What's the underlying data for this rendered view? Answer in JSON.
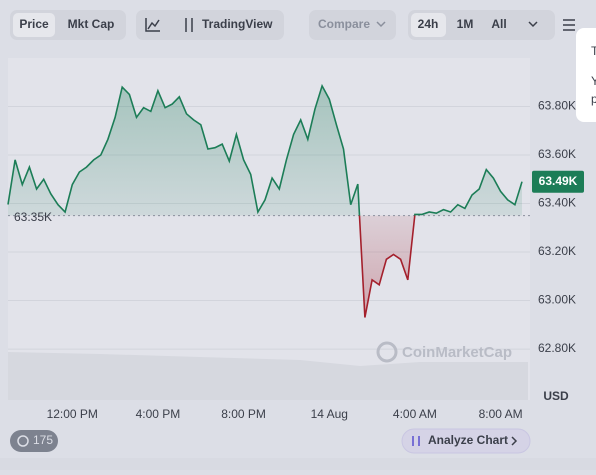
{
  "toolbar": {
    "tabs": [
      "Price",
      "Mkt Cap"
    ],
    "tradingview": "TradingView",
    "compare": "Compare",
    "ranges": [
      "24h",
      "1M",
      "All"
    ]
  },
  "tooltip_lines": [
    "T",
    "Y",
    "p"
  ],
  "chart_data": {
    "type": "line",
    "categories": [
      null,
      null,
      null,
      null,
      null,
      null,
      null,
      null,
      null,
      "12:00 PM",
      null,
      null,
      null,
      null,
      null,
      null,
      null,
      null,
      null,
      null,
      null,
      "4:00 PM",
      null,
      null,
      null,
      null,
      null,
      null,
      null,
      null,
      null,
      null,
      null,
      "8:00 PM",
      null,
      null,
      null,
      null,
      null,
      null,
      null,
      null,
      null,
      null,
      null,
      "14 Aug",
      null,
      null,
      null,
      null,
      null,
      null,
      null,
      null,
      null,
      null,
      null,
      "4:00 AM",
      null,
      null,
      null,
      null,
      null,
      null,
      null,
      null,
      null,
      null,
      null,
      "8:00 AM",
      null,
      null,
      null
    ],
    "values": [
      63396,
      63580,
      63478,
      63550,
      63460,
      63500,
      63440,
      63395,
      63365,
      63478,
      63530,
      63550,
      63580,
      63600,
      63665,
      63755,
      63880,
      63850,
      63755,
      63795,
      63780,
      63865,
      63795,
      63810,
      63840,
      63770,
      63745,
      63725,
      63625,
      63630,
      63645,
      63575,
      63685,
      63580,
      63520,
      63365,
      63415,
      63505,
      63460,
      63580,
      63685,
      63745,
      63665,
      63790,
      63885,
      63830,
      63725,
      63625,
      63395,
      63480,
      62930,
      63085,
      63065,
      63170,
      63190,
      63170,
      63085,
      63355,
      63355,
      63365,
      63360,
      63375,
      63365,
      63395,
      63380,
      63435,
      63460,
      63540,
      63505,
      63450,
      63415,
      63395,
      63490
    ],
    "baseline": {
      "value": 63350,
      "label": "63.35K"
    },
    "current": {
      "value": 63490,
      "label": "63.49K"
    },
    "up_color": "#1c7d57",
    "down_color": "#a4202c",
    "ylim": [
      62590,
      64000
    ],
    "yticks": [
      {
        "value": 62800,
        "label": "62.80K"
      },
      {
        "value": 63000,
        "label": "63.00K"
      },
      {
        "value": 63200,
        "label": "63.20K"
      },
      {
        "value": 63400,
        "label": "63.40K"
      },
      {
        "value": 63600,
        "label": "63.60K"
      },
      {
        "value": 63800,
        "label": "63.80K"
      }
    ],
    "grid": true,
    "y_unit": "USD",
    "watermark": "CoinMarketCap"
  },
  "footer": {
    "badge": "175",
    "analyze": "Analyze Chart"
  }
}
